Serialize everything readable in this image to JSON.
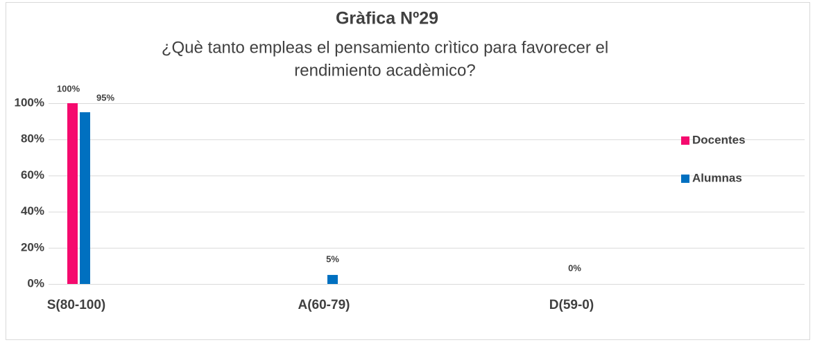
{
  "chart_data": {
    "type": "bar",
    "title": "Gràfica Nº29",
    "subtitle": [
      "¿Què tanto empleas el pensamiento crìtico para favorecer el",
      "rendimiento acadèmico?"
    ],
    "categories": [
      "S(80-100)",
      "A(60-79)",
      "D(59-0)"
    ],
    "series": [
      {
        "name": "Docentes",
        "color": "#f50a6e",
        "values": [
          100,
          0,
          0
        ],
        "value_labels": [
          "100%",
          null,
          null
        ]
      },
      {
        "name": "Alumnas",
        "color": "#0070c0",
        "values": [
          95,
          5,
          0
        ],
        "value_labels": [
          "95%",
          "5%",
          "0%"
        ]
      }
    ],
    "ylim": [
      0,
      100
    ],
    "yticks": [
      {
        "value": 0,
        "label": "0%"
      },
      {
        "value": 20,
        "label": "20%"
      },
      {
        "value": 40,
        "label": "40%"
      },
      {
        "value": 60,
        "label": "60%"
      },
      {
        "value": 80,
        "label": "80%"
      },
      {
        "value": 100,
        "label": "100%"
      }
    ],
    "grid": true,
    "legend": "right"
  }
}
